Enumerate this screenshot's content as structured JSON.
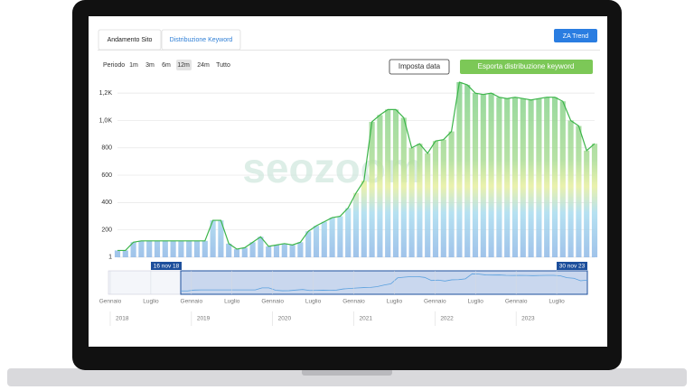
{
  "tabs": [
    "Andamento Sito",
    "Distribuzione Keyword"
  ],
  "trend_button": "ZA Trend",
  "period_label": "Periodo",
  "periods": [
    "1m",
    "3m",
    "6m",
    "12m",
    "24m",
    "Tutto"
  ],
  "actions": [
    "Imposta data",
    "Esporta distribuzione keyword"
  ],
  "watermark": "seozoom",
  "chart_data": {
    "type": "bar",
    "color": "#3cb54a",
    "values": [
      50,
      50,
      110,
      120,
      120,
      120,
      120,
      120,
      120,
      120,
      120,
      120,
      270,
      270,
      100,
      60,
      70,
      110,
      150,
      80,
      90,
      100,
      90,
      110,
      190,
      230,
      260,
      290,
      300,
      360,
      470,
      560,
      990,
      1040,
      1080,
      1080,
      1020,
      800,
      830,
      760,
      850,
      860,
      920,
      1280,
      1260,
      1200,
      1190,
      1200,
      1170,
      1160,
      1170,
      1160,
      1150,
      1160,
      1170,
      1170,
      1140,
      1000,
      960,
      780,
      830
    ],
    "ylim": [
      0,
      1300
    ],
    "yticks": [
      1,
      200,
      400,
      600,
      800,
      {
        "value": 1000,
        "label": "1,0K"
      },
      {
        "value": 1200,
        "label": "1,2K"
      }
    ],
    "grid": true
  },
  "navigator": {
    "start_label": "16 nov 18",
    "end_label": "30 nov 23",
    "months": [
      "Gennaio",
      "Luglio",
      "Gennaio",
      "Luglio",
      "Gennaio",
      "Luglio",
      "Gennaio",
      "Luglio",
      "Gennaio",
      "Luglio",
      "Gennaio",
      "Luglio"
    ],
    "years": [
      "2018",
      "2019",
      "2020",
      "2021",
      "2022",
      "2023"
    ]
  }
}
